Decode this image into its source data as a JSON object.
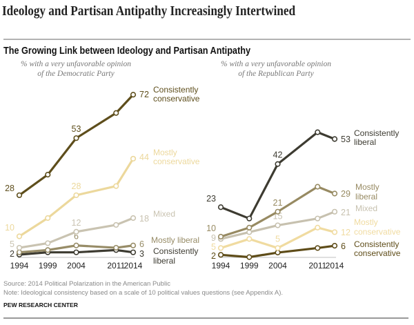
{
  "title": "Ideology and Partisan Antipathy Increasingly Intertwined",
  "subtitle": "The Growing Link between Ideology and Partisan Antipathy",
  "footer": {
    "source": "Source: 2014 Political Polarization in the American Public",
    "note": "Note: Ideological consistency based on a scale of 10 political values questions (see Appendix A).",
    "org": "PEW RESEARCH CENTER"
  },
  "chart_data": [
    {
      "type": "line",
      "subtitle_lines": [
        "% with a very unfavorable opinion",
        "of the Democratic Party"
      ],
      "x": [
        1994,
        1999,
        2004,
        2011,
        2014
      ],
      "x_tick_labels": [
        "1994",
        "1999",
        "2004",
        "2011",
        "2014"
      ],
      "ylim": [
        0,
        75
      ],
      "grid": false,
      "series": [
        {
          "name": [
            "Consistently",
            "conservative"
          ],
          "color": "#5e4e1c",
          "values": [
            28,
            37,
            53,
            64,
            72
          ],
          "labels": {
            "1994": "28",
            "2004": "53",
            "2014": "72"
          }
        },
        {
          "name": [
            "Mostly",
            "conservative"
          ],
          "color": "#ecd89c",
          "values": [
            10,
            18,
            28,
            32,
            44
          ],
          "labels": {
            "1994": "10",
            "2004": "28",
            "2014": "44"
          }
        },
        {
          "name": [
            "Mixed"
          ],
          "color": "#c9c3b1",
          "values": [
            5,
            7,
            12,
            15,
            18
          ],
          "labels": {
            "1994": "5",
            "2004": "12",
            "2014": "18"
          }
        },
        {
          "name": [
            "Mostly liberal"
          ],
          "color": "#978c67",
          "values": [
            3,
            4,
            6,
            5,
            6
          ],
          "labels": {
            "2004": "6",
            "2014": "6"
          }
        },
        {
          "name": [
            "Consistently",
            "liberal"
          ],
          "color": "#3d3b31",
          "values": [
            2,
            3,
            3,
            4,
            3
          ],
          "labels": {
            "1994": "2",
            "2014": "3"
          }
        }
      ]
    },
    {
      "type": "line",
      "subtitle_lines": [
        "% with a very unfavorable opinion",
        "of the Republican Party"
      ],
      "x": [
        1994,
        1999,
        2004,
        2011,
        2014
      ],
      "x_tick_labels": [
        "1994",
        "1999",
        "2004",
        "2011",
        "2014"
      ],
      "ylim": [
        0,
        75
      ],
      "grid": false,
      "series": [
        {
          "name": [
            "Consistently",
            "liberal"
          ],
          "color": "#3d3b31",
          "values": [
            23,
            18,
            42,
            56,
            53
          ],
          "labels": {
            "1994": "23",
            "2004": "42",
            "2014": "53"
          }
        },
        {
          "name": [
            "Mostly",
            "liberal"
          ],
          "color": "#978a62",
          "values": [
            10,
            14,
            21,
            32,
            29
          ],
          "labels": {
            "1994": "10",
            "2004": "21",
            "2014": "29"
          }
        },
        {
          "name": [
            "Mixed"
          ],
          "color": "#c7c1af",
          "values": [
            9,
            12,
            15,
            18,
            21
          ],
          "labels": {
            "1994": "9",
            "2004": "15",
            "2014": "21"
          }
        },
        {
          "name": [
            "Mostly",
            "conservative"
          ],
          "color": "#f0dba0",
          "values": [
            5,
            9,
            5,
            14,
            12
          ],
          "labels": {
            "1994": "5",
            "2004": "5",
            "2014": "12"
          }
        },
        {
          "name": [
            "Consistently",
            "conservative"
          ],
          "color": "#5e4c18",
          "values": [
            2,
            1,
            3,
            5,
            6
          ],
          "labels": {
            "1994": "2",
            "2014": "6"
          }
        }
      ]
    }
  ]
}
